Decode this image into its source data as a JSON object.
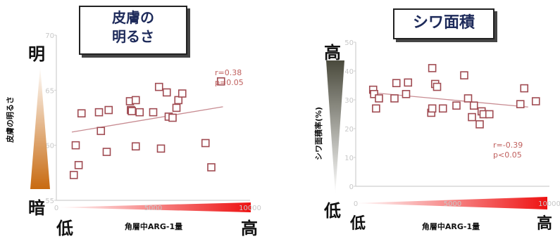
{
  "chart_data": [
    {
      "type": "scatter",
      "title": "皮膚の\n明るさ",
      "xlabel": "角層中ARG-1量",
      "ylabel": "皮膚の明るさ",
      "ylim": [
        55,
        70
      ],
      "xlim": [
        0,
        10000
      ],
      "yticks": [
        "70",
        "65",
        "60",
        "55"
      ],
      "xticks": [
        "0",
        "5000",
        "10000"
      ],
      "scale_top_label": "明",
      "scale_bottom_label": "暗",
      "x_low_label": "低",
      "x_high_label": "高",
      "stats": [
        "r=0.38",
        "p=0.05"
      ],
      "trend": {
        "x": [
          800,
          8600
        ],
        "y": [
          61.2,
          63.5
        ]
      },
      "points": [
        {
          "x": 900,
          "y": 57.3
        },
        {
          "x": 1000,
          "y": 60.0
        },
        {
          "x": 1150,
          "y": 58.2
        },
        {
          "x": 1300,
          "y": 62.9
        },
        {
          "x": 2200,
          "y": 63.0
        },
        {
          "x": 2300,
          "y": 61.3
        },
        {
          "x": 2600,
          "y": 59.4
        },
        {
          "x": 2700,
          "y": 63.2
        },
        {
          "x": 3800,
          "y": 64.0
        },
        {
          "x": 3850,
          "y": 63.2
        },
        {
          "x": 3900,
          "y": 63.1
        },
        {
          "x": 4100,
          "y": 59.9
        },
        {
          "x": 4100,
          "y": 64.1
        },
        {
          "x": 4300,
          "y": 63.0
        },
        {
          "x": 5000,
          "y": 63.0
        },
        {
          "x": 5300,
          "y": 65.3
        },
        {
          "x": 5400,
          "y": 59.7
        },
        {
          "x": 5700,
          "y": 64.8
        },
        {
          "x": 5800,
          "y": 62.6
        },
        {
          "x": 6000,
          "y": 62.5
        },
        {
          "x": 6200,
          "y": 63.4
        },
        {
          "x": 6300,
          "y": 64.1
        },
        {
          "x": 6500,
          "y": 64.7
        },
        {
          "x": 7700,
          "y": 60.2
        },
        {
          "x": 8000,
          "y": 58.0
        },
        {
          "x": 8500,
          "y": 65.8
        }
      ],
      "colors": {
        "marker": "#a04b52",
        "trend": "#c88c92",
        "stats": "#c0605e",
        "scale_gradient": [
          "#c86a10",
          "#ffffff"
        ],
        "x_gradient": [
          "#ffffff",
          "#ee1111"
        ],
        "axis": "#cfcfcf",
        "tick_label": "#c8c8c8"
      }
    },
    {
      "type": "scatter",
      "title": "シワ面積",
      "xlabel": "角層中ARG-1量",
      "ylabel": "シワ面積率(%)",
      "ylim": [
        0,
        50
      ],
      "xlim": [
        0,
        10000
      ],
      "yticks": [
        "50",
        "40",
        "30",
        "20",
        "10",
        "0"
      ],
      "xticks": [
        "0",
        "5000",
        "10000"
      ],
      "scale_top_label": "高",
      "scale_bottom_label": "低",
      "x_low_label": "低",
      "x_high_label": "高",
      "stats": [
        "r=-0.39",
        "p<0.05"
      ],
      "trend": {
        "x": [
          800,
          8900
        ],
        "y": [
          32.5,
          27.5
        ]
      },
      "points": [
        {
          "x": 900,
          "y": 33.5
        },
        {
          "x": 950,
          "y": 32.0
        },
        {
          "x": 1050,
          "y": 27.0
        },
        {
          "x": 1200,
          "y": 30.5
        },
        {
          "x": 2000,
          "y": 30.5
        },
        {
          "x": 2100,
          "y": 35.8
        },
        {
          "x": 2600,
          "y": 32.0
        },
        {
          "x": 2700,
          "y": 36.0
        },
        {
          "x": 3950,
          "y": 41.0
        },
        {
          "x": 3900,
          "y": 25.5
        },
        {
          "x": 3950,
          "y": 27.0
        },
        {
          "x": 4100,
          "y": 35.5
        },
        {
          "x": 4200,
          "y": 34.5
        },
        {
          "x": 4500,
          "y": 27.0
        },
        {
          "x": 5200,
          "y": 28.0
        },
        {
          "x": 5600,
          "y": 38.5
        },
        {
          "x": 5800,
          "y": 30.5
        },
        {
          "x": 6000,
          "y": 24.0
        },
        {
          "x": 6100,
          "y": 28.0
        },
        {
          "x": 6500,
          "y": 26.0
        },
        {
          "x": 6400,
          "y": 21.5
        },
        {
          "x": 6600,
          "y": 25.0
        },
        {
          "x": 6900,
          "y": 25.0
        },
        {
          "x": 8500,
          "y": 28.5
        },
        {
          "x": 8700,
          "y": 34.0
        },
        {
          "x": 9300,
          "y": 29.5
        }
      ],
      "colors": {
        "marker": "#a04b52",
        "trend": "#c88c92",
        "stats": "#c0605e",
        "scale_gradient": [
          "#4a4a3c",
          "#ffffff"
        ],
        "x_gradient": [
          "#ffffff",
          "#ee1111"
        ],
        "axis": "#cfcfcf",
        "tick_label": "#c8c8c8"
      }
    }
  ]
}
